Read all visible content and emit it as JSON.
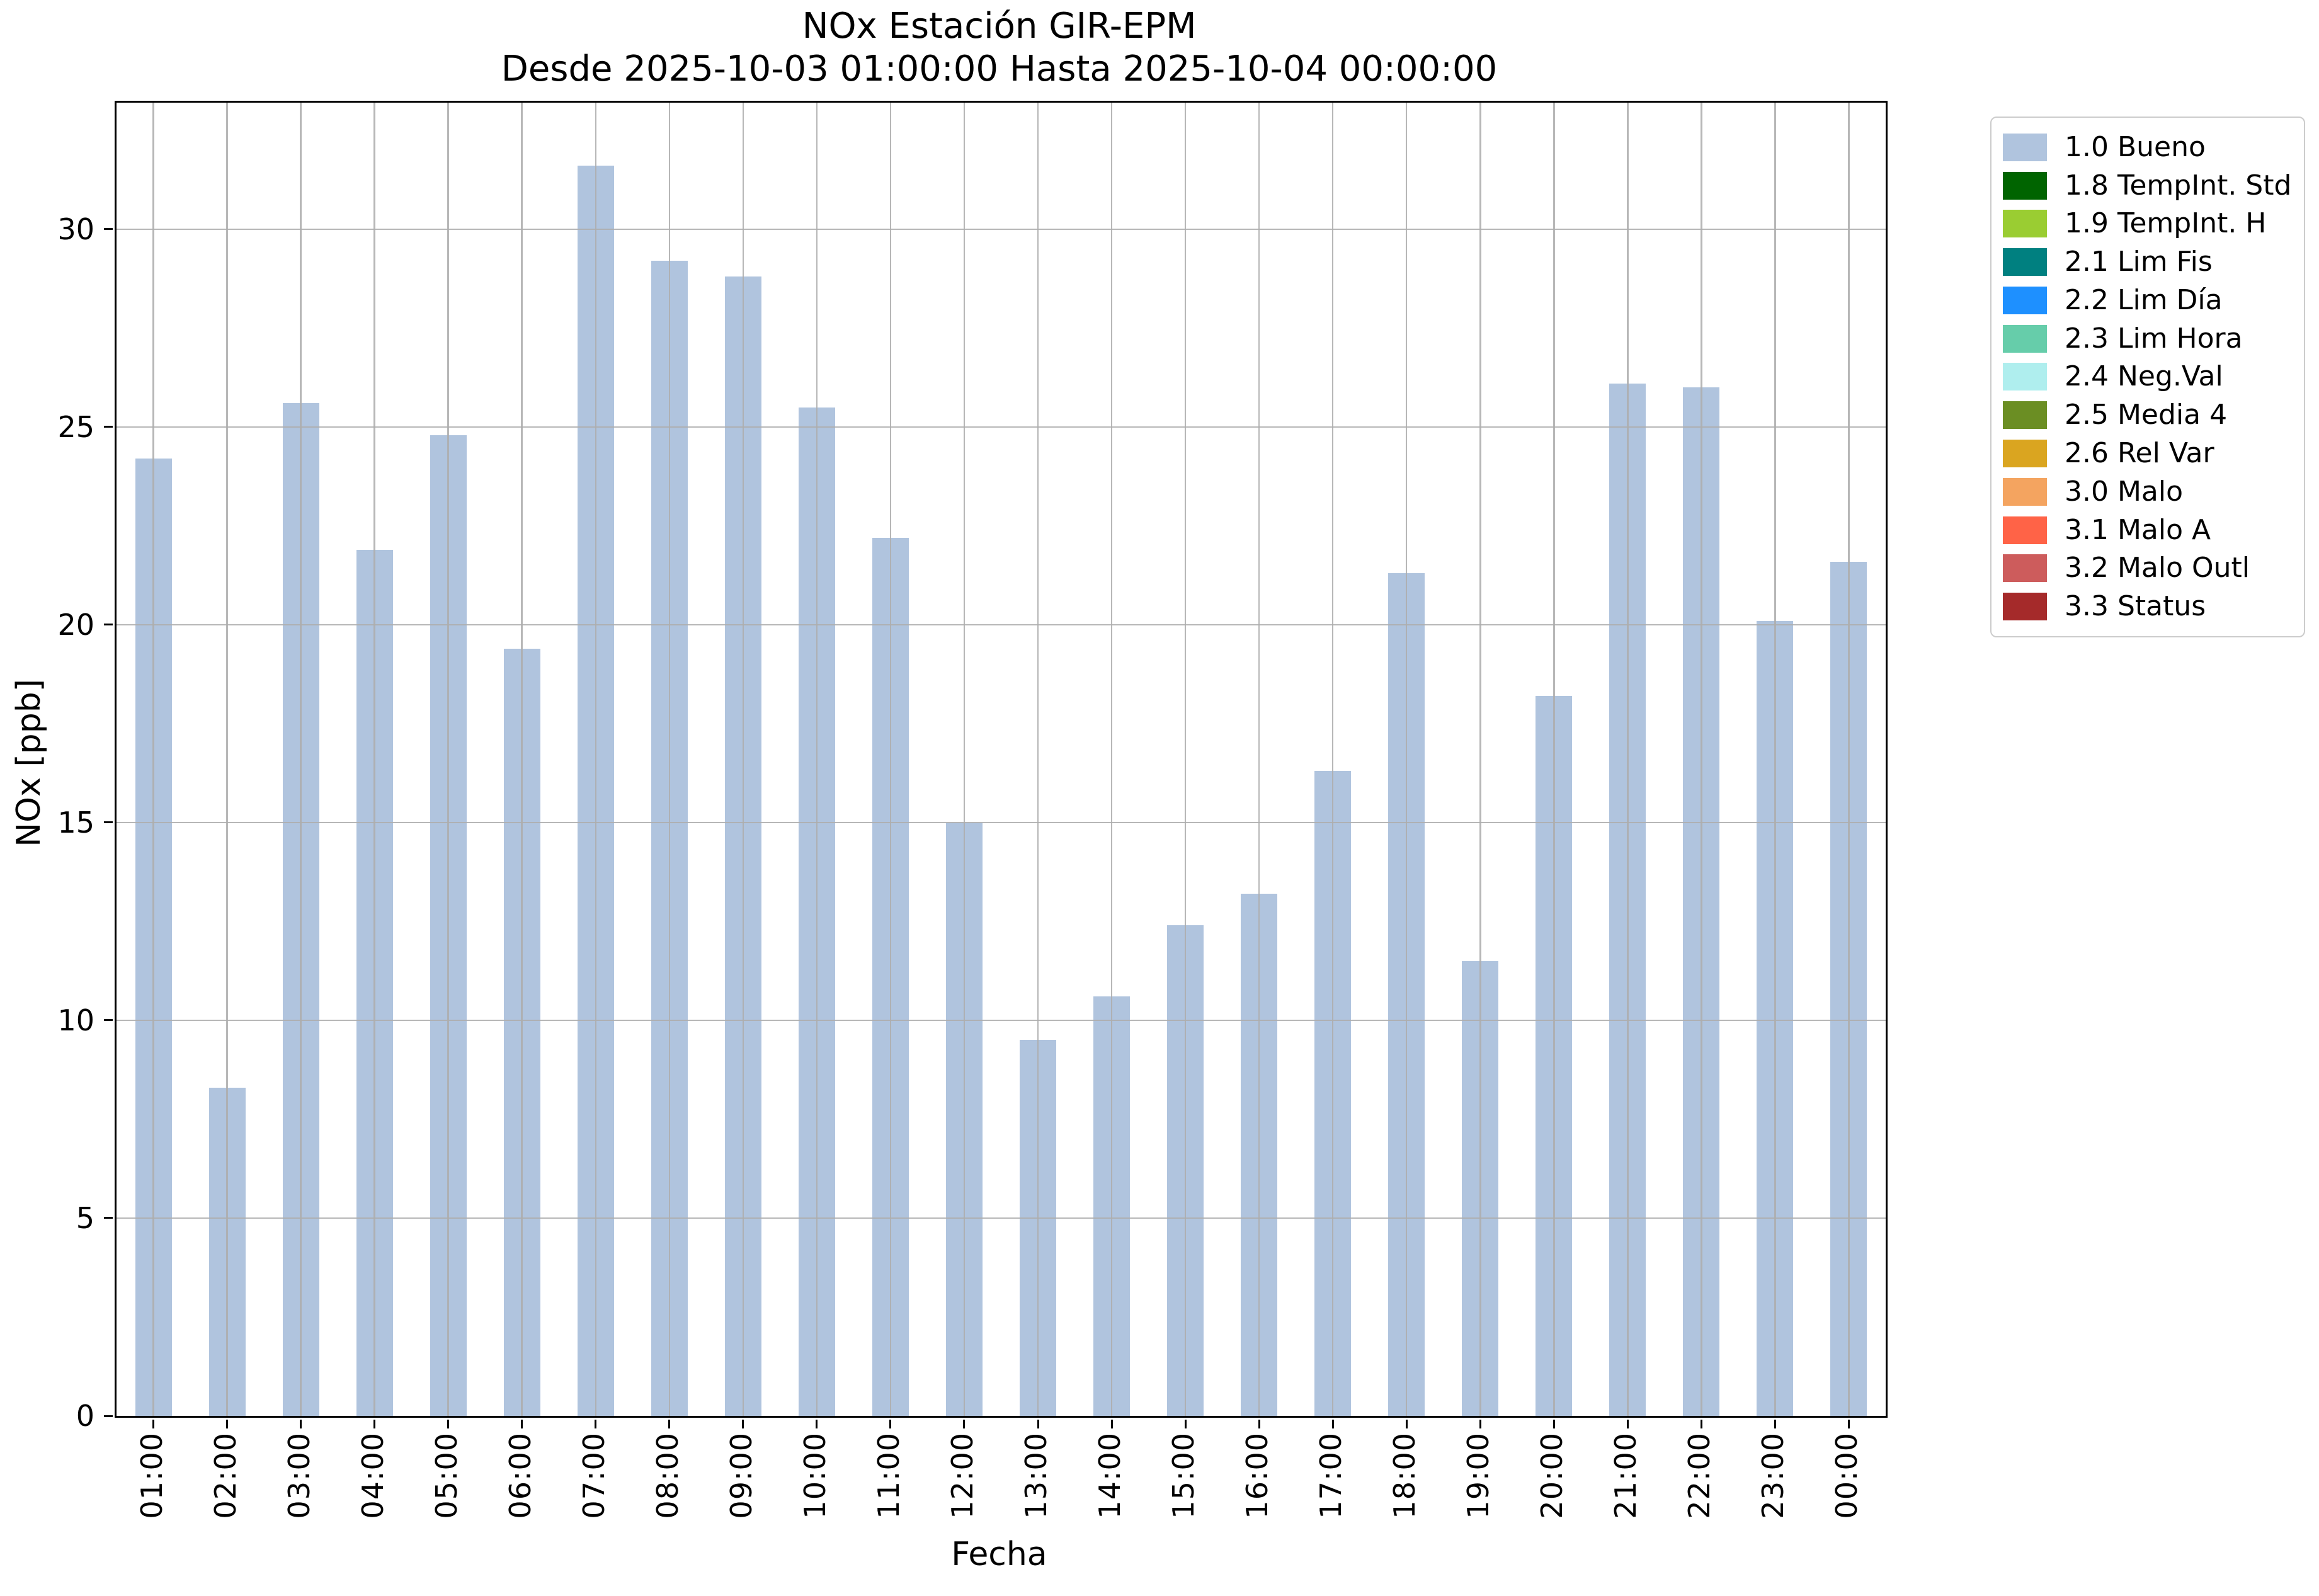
{
  "title": {
    "line1": "NOx Estación GIR-EPM",
    "line2": "Desde 2025-10-03 01:00:00 Hasta 2025-10-04 00:00:00"
  },
  "axes": {
    "xlabel": "Fecha",
    "ylabel": "NOx [ppb]",
    "yticks": [
      0,
      5,
      10,
      15,
      20,
      25,
      30
    ],
    "ylim": [
      0,
      33.2
    ]
  },
  "chart_data": {
    "type": "bar",
    "title": "NOx Estación GIR-EPM\nDesde 2025-10-03 01:00:00 Hasta 2025-10-04 00:00:00",
    "xlabel": "Fecha",
    "ylabel": "NOx [ppb]",
    "categories": [
      "01:00",
      "02:00",
      "03:00",
      "04:00",
      "05:00",
      "06:00",
      "07:00",
      "08:00",
      "09:00",
      "10:00",
      "11:00",
      "12:00",
      "13:00",
      "14:00",
      "15:00",
      "16:00",
      "17:00",
      "18:00",
      "19:00",
      "20:00",
      "21:00",
      "22:00",
      "23:00",
      "00:00"
    ],
    "values": [
      24.2,
      8.3,
      25.6,
      21.9,
      24.8,
      19.4,
      31.6,
      29.2,
      28.8,
      25.5,
      22.2,
      15.0,
      9.5,
      10.6,
      12.4,
      13.2,
      16.3,
      21.3,
      11.5,
      18.2,
      26.1,
      26.0,
      20.1,
      21.6
    ],
    "ylim": [
      0,
      33.2
    ],
    "bar_color": "#b0c4de",
    "grid": true,
    "grid_color": "#adadad",
    "legend_position": "outside-top-right"
  },
  "legend": {
    "items": [
      {
        "label": "1.0 Bueno",
        "color": "#b0c4de"
      },
      {
        "label": "1.8 TempInt. Std",
        "color": "#006400"
      },
      {
        "label": "1.9 TempInt. H",
        "color": "#9acd32"
      },
      {
        "label": "2.1 Lim Fis",
        "color": "#008080"
      },
      {
        "label": "2.2 Lim Día",
        "color": "#1e90ff"
      },
      {
        "label": "2.3 Lim Hora",
        "color": "#66cdaa"
      },
      {
        "label": "2.4 Neg.Val",
        "color": "#afeeee"
      },
      {
        "label": "2.5 Media 4",
        "color": "#6b8e23"
      },
      {
        "label": "2.6 Rel Var",
        "color": "#daa520"
      },
      {
        "label": "3.0 Malo",
        "color": "#f4a460"
      },
      {
        "label": "3.1 Malo A",
        "color": "#ff6347"
      },
      {
        "label": "3.2 Malo Outl",
        "color": "#cd5c5c"
      },
      {
        "label": "3.3 Status",
        "color": "#a52a2a"
      }
    ]
  }
}
